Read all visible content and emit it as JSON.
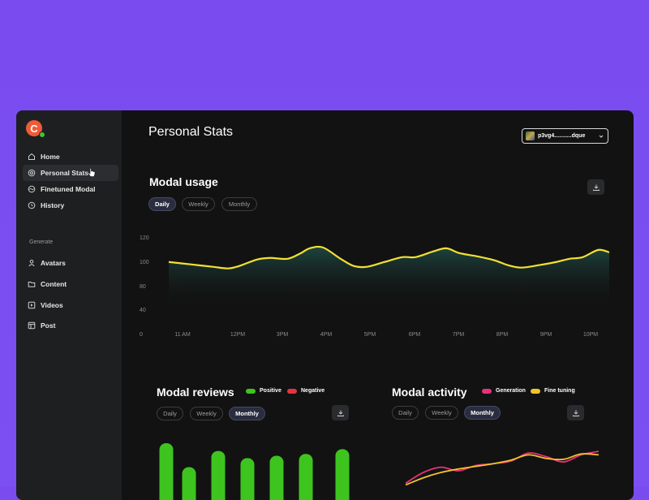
{
  "app": {
    "logo_letter": "C"
  },
  "sidebar": {
    "items": [
      {
        "label": "Home",
        "icon": "home-icon"
      },
      {
        "label": "Personal Stats",
        "icon": "target-icon",
        "active": true
      },
      {
        "label": "Finetuned Modal",
        "icon": "wave-icon"
      },
      {
        "label": "History",
        "icon": "clock-icon"
      }
    ],
    "generate_label": "Generate",
    "generate_items": [
      {
        "label": "Avatars",
        "icon": "user-icon"
      },
      {
        "label": "Content",
        "icon": "folder-icon"
      },
      {
        "label": "Videos",
        "icon": "play-icon"
      },
      {
        "label": "Post",
        "icon": "layout-icon"
      }
    ]
  },
  "header": {
    "title": "Personal Stats",
    "user": "p3vg4...........dque"
  },
  "usage": {
    "title": "Modal usage",
    "tabs": [
      "Daily",
      "Weekly",
      "Monthly"
    ],
    "active_tab": "Daily"
  },
  "reviews": {
    "title": "Modal reviews",
    "legend": [
      "Positive",
      "Negative"
    ],
    "tabs": [
      "Daily",
      "Weekly",
      "Monthly"
    ],
    "active_tab": "Monthly"
  },
  "activity": {
    "title": "Modal activity",
    "legend": [
      "Generation",
      "Fine tuning"
    ],
    "tabs": [
      "Daily",
      "Weekly",
      "Monthly"
    ],
    "active_tab": "Monthly"
  },
  "colors": {
    "accent_line": "#f2e034",
    "positive": "#3ec41e",
    "negative": "#e6343d",
    "generation": "#e8317c",
    "fine_tuning": "#f2c12e"
  },
  "chart_data": [
    {
      "type": "area",
      "title": "Modal usage",
      "x_ticks": [
        "11 AM",
        "12PM",
        "3PM",
        "4PM",
        "5PM",
        "6PM",
        "7PM",
        "8PM",
        "9PM",
        "10PM"
      ],
      "y_ticks": [
        0,
        40,
        80,
        100,
        120
      ],
      "ylim": [
        0,
        120
      ],
      "x": [
        0,
        0.5,
        1,
        1.35,
        1.6,
        2,
        2.3,
        2.7,
        3,
        3.2,
        3.5,
        3.9,
        4.2,
        4.5,
        4.9,
        5.3,
        5.6,
        6,
        6.3,
        6.6,
        7,
        7.4,
        7.7,
        8,
        8.4,
        8.8,
        9.1,
        9.4,
        9.75,
        10
      ],
      "values": [
        89,
        86,
        83,
        81,
        84,
        92,
        94,
        93,
        100,
        106,
        107,
        93,
        84,
        83,
        89,
        95,
        95,
        102,
        106,
        100,
        96,
        91,
        85,
        82,
        85,
        89,
        93,
        95,
        104,
        101
      ]
    },
    {
      "type": "bar",
      "title": "Modal reviews",
      "series": [
        {
          "name": "Positive",
          "values": [
            95,
            55,
            82,
            70,
            74,
            77,
            85
          ]
        }
      ]
    },
    {
      "type": "line",
      "title": "Modal activity",
      "series": [
        {
          "name": "Generation",
          "values": [
            8,
            20,
            26,
            22,
            28,
            30,
            33,
            42,
            38,
            32,
            40,
            44
          ]
        },
        {
          "name": "Fine tuning",
          "values": [
            6,
            14,
            20,
            24,
            27,
            30,
            34,
            40,
            36,
            35,
            41,
            40
          ]
        }
      ]
    }
  ]
}
